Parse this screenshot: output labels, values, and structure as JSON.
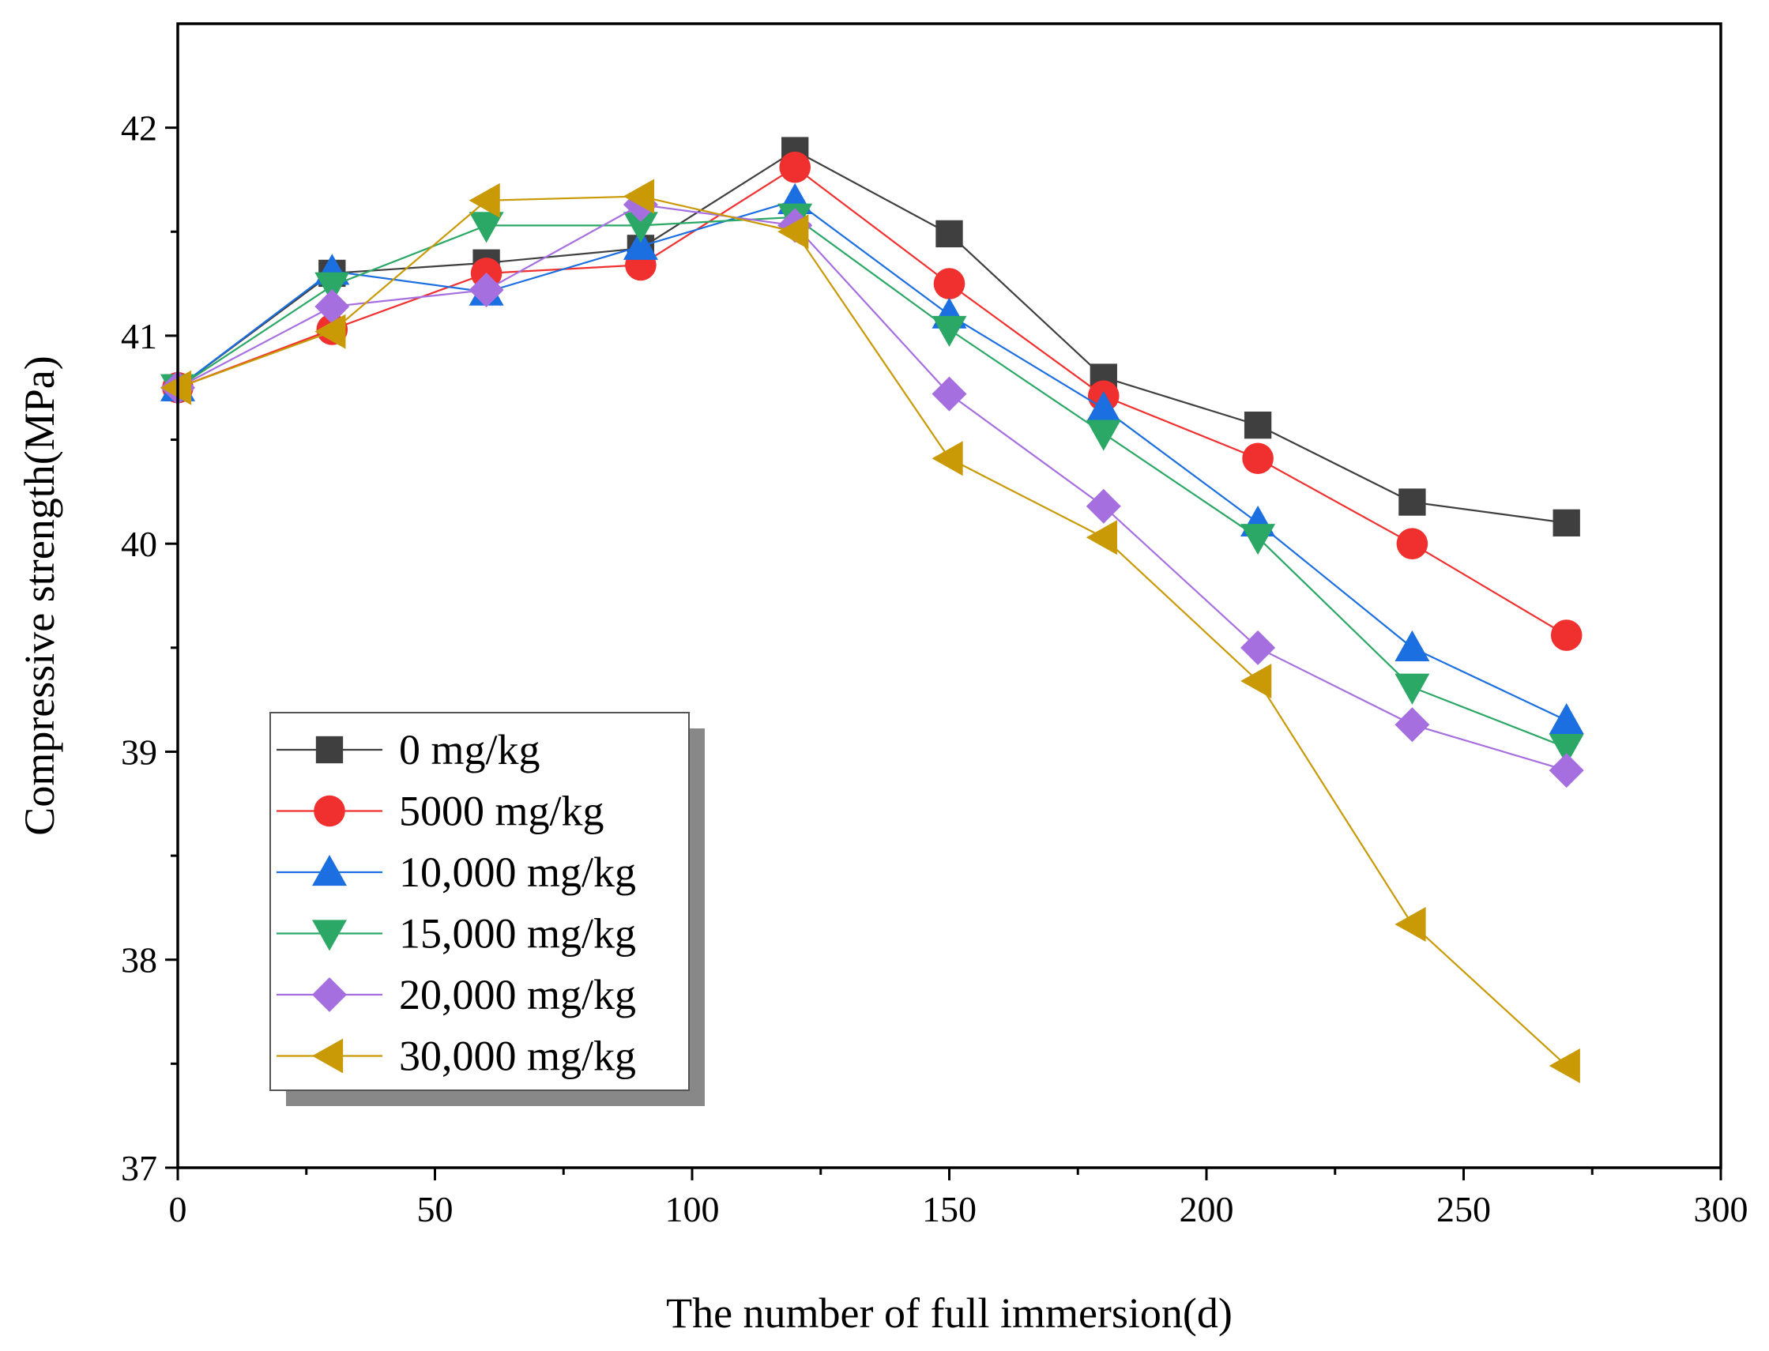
{
  "chart_data": {
    "type": "line",
    "title": "",
    "xlabel": "The number of full immersion(d)",
    "ylabel": "Compressive strength(MPa)",
    "xlim": [
      0,
      300
    ],
    "ylim": [
      37,
      42.5
    ],
    "xticks": [
      0,
      50,
      100,
      150,
      200,
      250,
      300
    ],
    "xtick_labels": [
      "0",
      "50",
      "100",
      "150",
      "200",
      "250",
      "300"
    ],
    "yticks": [
      37,
      38,
      39,
      40,
      41,
      42
    ],
    "ytick_labels": [
      "37",
      "38",
      "39",
      "40",
      "41",
      "42"
    ],
    "grid": false,
    "legend_position": "bottom-left",
    "x": [
      0,
      30,
      60,
      90,
      120,
      150,
      180,
      210,
      240,
      270
    ],
    "series": [
      {
        "name": "0 mg/kg",
        "color": "#3f3f3f",
        "marker": "square",
        "values": [
          40.75,
          41.3,
          41.35,
          41.42,
          41.89,
          41.49,
          40.8,
          40.57,
          40.2,
          40.1
        ]
      },
      {
        "name": "5000 mg/kg",
        "color": "#f0302f",
        "marker": "circle",
        "values": [
          40.75,
          41.03,
          41.3,
          41.34,
          41.81,
          41.25,
          40.71,
          40.41,
          40.0,
          39.56
        ]
      },
      {
        "name": "10,000 mg/kg",
        "color": "#1b6fe0",
        "marker": "triangle-up",
        "values": [
          40.75,
          41.31,
          41.21,
          41.43,
          41.65,
          41.1,
          40.65,
          40.1,
          39.5,
          39.15
        ]
      },
      {
        "name": "15,000 mg/kg",
        "color": "#2ba866",
        "marker": "triangle-down",
        "values": [
          40.75,
          41.24,
          41.53,
          41.53,
          41.57,
          41.03,
          40.53,
          40.03,
          39.31,
          39.02
        ]
      },
      {
        "name": "20,000 mg/kg",
        "color": "#a66fe0",
        "marker": "diamond",
        "values": [
          40.75,
          41.14,
          41.22,
          41.63,
          41.53,
          40.72,
          40.18,
          39.5,
          39.13,
          38.91
        ]
      },
      {
        "name": "30,000 mg/kg",
        "color": "#c99a06",
        "marker": "triangle-left",
        "values": [
          40.75,
          41.02,
          41.65,
          41.67,
          41.5,
          40.41,
          40.03,
          39.34,
          38.17,
          37.49
        ]
      }
    ]
  }
}
